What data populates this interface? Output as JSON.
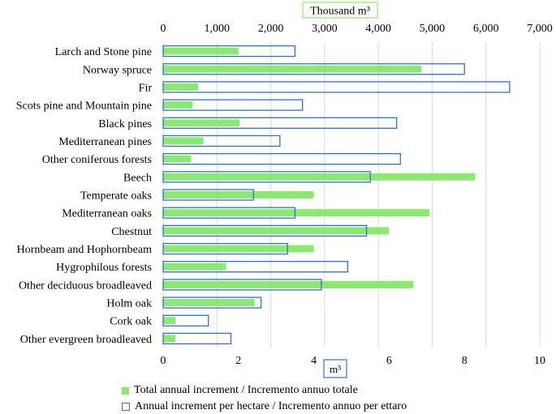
{
  "chart_data": {
    "type": "bar",
    "orientation": "horizontal",
    "categories": [
      "Larch and Stone pine",
      "Norway spruce",
      "Fir",
      "Scots pine and Mountain pine",
      "Black pines",
      "Mediterranean pines",
      "Other coniferous forests",
      "Beech",
      "Temperate oaks",
      "Mediterranean oaks",
      "Chestnut",
      "Hornbeam and Hophornbeam",
      "Hygrophilous forests",
      "Other deciduous broadleaved",
      "Holm oak",
      "Cork oak",
      "Other evergreen broadleaved"
    ],
    "series": [
      {
        "name": "Total annual increment / Incremento annuo totale",
        "axis": "top",
        "style": "filled",
        "color": "#8de872",
        "values": [
          1400,
          4800,
          650,
          550,
          1420,
          750,
          520,
          5800,
          2800,
          4950,
          4200,
          2800,
          1170,
          4650,
          1700,
          230,
          230
        ]
      },
      {
        "name": "Annual increment per hectare / Incremento annuo per ettaro",
        "axis": "bottom",
        "style": "outline",
        "color": "#2f6fdc",
        "values": [
          3.5,
          8.0,
          9.2,
          3.7,
          6.2,
          3.1,
          6.3,
          5.5,
          2.4,
          3.5,
          5.4,
          3.3,
          4.9,
          4.2,
          2.6,
          1.2,
          1.8
        ]
      }
    ],
    "top_axis": {
      "label": "Thousand m³",
      "range": [
        0,
        7000
      ],
      "ticks": [
        "0",
        "1,000",
        "2,000",
        "3,000",
        "4,000",
        "5,000",
        "6,000",
        "7,000"
      ]
    },
    "bottom_axis": {
      "label": "m³",
      "range": [
        0,
        10
      ],
      "ticks": [
        "0",
        "2",
        "4",
        "6",
        "8",
        "10"
      ]
    },
    "grid": true,
    "legend_position": "bottom"
  }
}
